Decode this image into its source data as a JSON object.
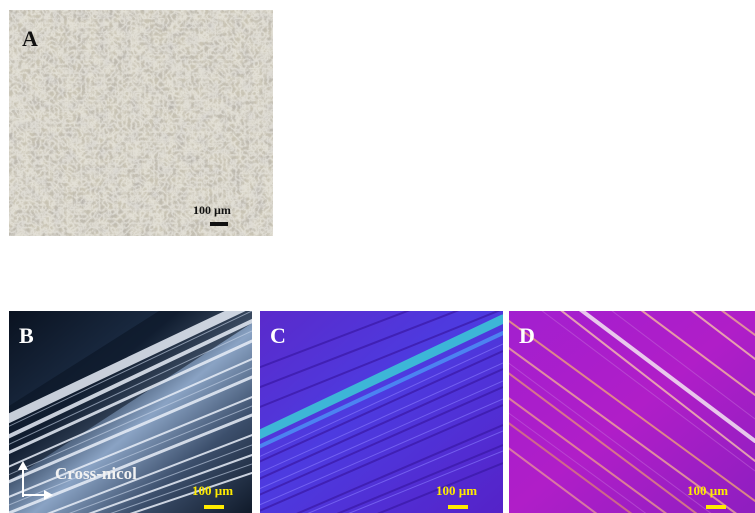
{
  "panels": [
    {
      "label": "A",
      "scale": "100 µm"
    },
    {
      "label": "B",
      "scale": "100 µm",
      "polarizer_label": "Cross-nicol"
    },
    {
      "label": "C",
      "scale": "100 µm"
    },
    {
      "label": "D",
      "scale": "100 µm"
    }
  ],
  "colors": {
    "panel_a_base": "#c9c4b4",
    "panel_b_base": "#0d1a2a",
    "panel_c_base": "#5a22d0",
    "panel_d_base": "#9a1fc4",
    "scale_yellow": "#ffeb00"
  },
  "icons": [
    "axes-arrows-icon"
  ]
}
